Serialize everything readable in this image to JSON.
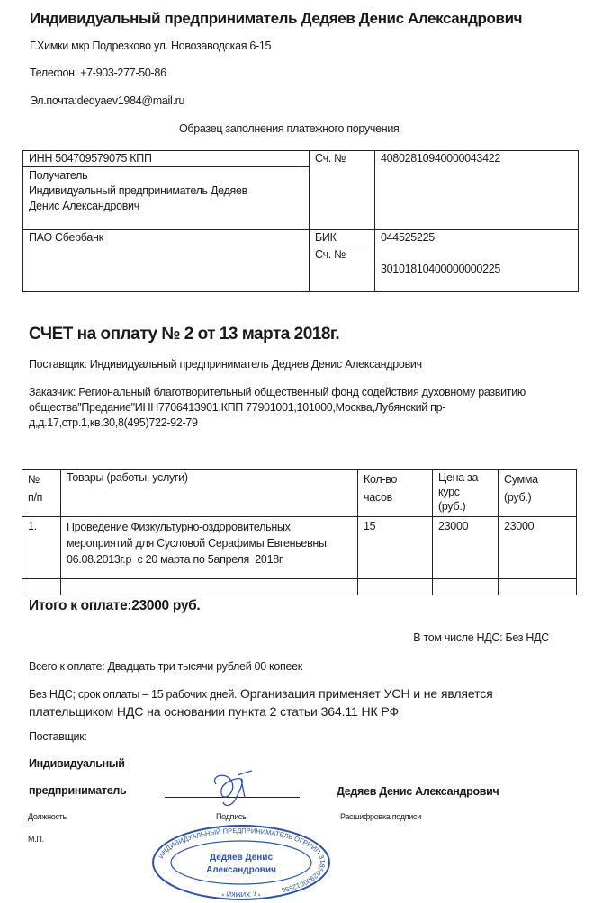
{
  "header": {
    "title": "Индивидуальный предприниматель Дедяев Денис Александрович",
    "address": "Г.Химки мкр Подрезково ул. Новозаводская 6-15",
    "phone": "Телефон:  +7-903-277-50-86",
    "email": "Эл.почта:dedyaev1984@mail.ru"
  },
  "payment_form": {
    "title": "Образец заполнения платежного поручения",
    "inn_kpp": "ИНН  504709579075 КПП",
    "recipient_label": "Получатель",
    "recipient_line1": "Индивидуальный предприниматель  Дедяев",
    "recipient_line2": "Денис Александрович",
    "account_label": "Сч. №",
    "account": "40802810940000043422",
    "bank": "ПАО Сбербанк",
    "bik_label": "БИК",
    "bik": "044525225",
    "corr_account_label": "Сч. №",
    "corr_account": "30101810400000000225"
  },
  "invoice": {
    "title": "СЧЕТ на оплату № 2 от 13 марта 2018г.",
    "supplier": "Поставщик: Индивидуальный предприниматель Дедяев Денис Александрович",
    "customer_line1": "Заказчик: Региональный благотворительный общественный фонд содействия духовному развитию",
    "customer_line2": "общества\"Предание\"ИНН7706413901,КПП 77901001,101000,Москва,Лубянский пр-",
    "customer_line3": "д,д.17,стр.1,кв.30,8(495)722-92-79",
    "columns": [
      "№\nп/п",
      "Товары (работы, услуги)",
      "Кол-во\nчасов",
      "Цена за\nкурс\n(руб.)",
      "Сумма\n(руб.)"
    ],
    "rows": [
      {
        "num": "1.",
        "item": "Проведение Физкультурно-оздоровительных\nмероприятий для Сусловой Серафимы Евгеньевны\n06.08.2013г.р  с 20 марта по 5апреля  2018г.",
        "qty": "15",
        "price": "23000",
        "sum": "23000"
      }
    ],
    "total": "Итого к оплате:23000 руб.",
    "vat": "В том числе НДС: Без НДС",
    "total_words": "Всего к оплате: Двадцать три тысячи рублей 00 копеек",
    "terms_line1a": "Без НДС; срок оплаты – 15 рабочих дней.",
    "terms_line1b": " Организация применяет УСН и не является",
    "terms_line2": "плательщиком НДС на основании пункта 2 статьи 364.11 НК РФ"
  },
  "signature": {
    "supplier_label": "Поставщик:",
    "position_line1": "Индивидуальный",
    "position_line2": "предприниматель",
    "name": "Дедяев Денис Александрович",
    "signature_caption": "Подпись",
    "name_caption": "Расшифровка подписи",
    "position_caption": "Должность",
    "seal_caption": "М.П."
  },
  "stamp": {
    "ring_text": "ИНДИВИДУАЛЬНЫЙ ПРЕДПРИНИМАТЕЛЬ ОГРНИП 318502900012656",
    "bottom_text": "* г. ХИМКИ *",
    "center_line1": "Дедяев",
    "center_line2": "Денис",
    "center_line3": "Александрович",
    "color": "#2c52a8"
  }
}
